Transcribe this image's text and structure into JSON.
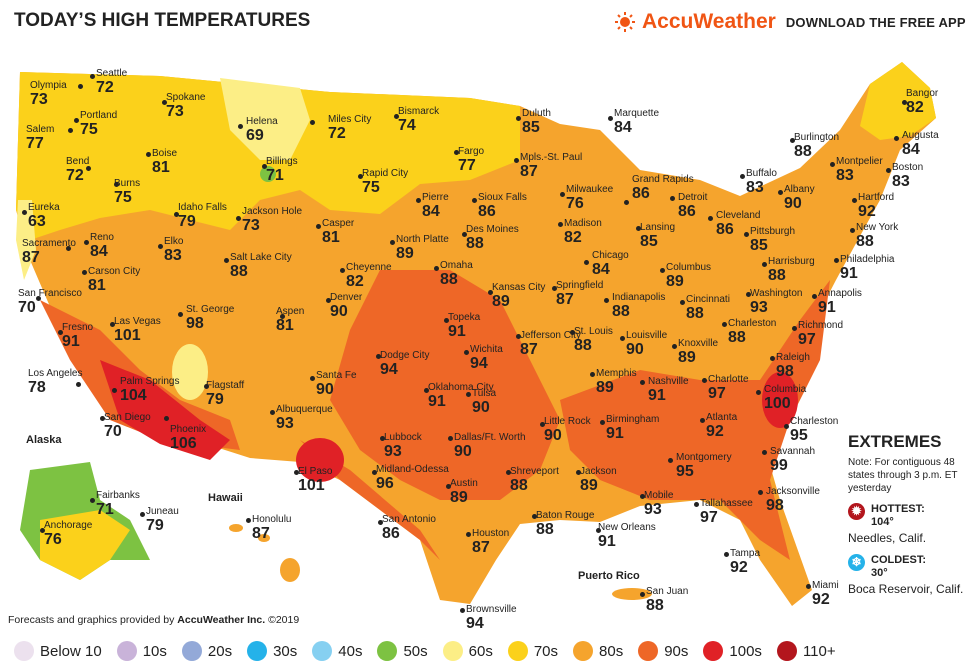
{
  "header": {
    "title": "TODAY’S HIGH TEMPERATURES",
    "brand": "AccuWeather",
    "download": "DOWNLOAD THE FREE APP"
  },
  "colors": {
    "brand": "#f05514",
    "band_60s": "#fcee86",
    "band_70s": "#fbd11b",
    "band_80s": "#f5a42d",
    "band_90s": "#ee6727",
    "band_100s": "#e02126",
    "band_110": "#b3161d",
    "band_50s": "#7dc242"
  },
  "regions": {
    "alaska": "Alaska",
    "hawaii": "Hawaii",
    "puerto_rico": "Puerto Rico"
  },
  "cities": [
    {
      "name": "Olympia",
      "temp": "73"
    },
    {
      "name": "Seattle",
      "temp": "72"
    },
    {
      "name": "Portland",
      "temp": "75"
    },
    {
      "name": "Salem",
      "temp": "77"
    },
    {
      "name": "Bend",
      "temp": "72"
    },
    {
      "name": "Spokane",
      "temp": "73"
    },
    {
      "name": "Boise",
      "temp": "81"
    },
    {
      "name": "Burns",
      "temp": "75"
    },
    {
      "name": "Eureka",
      "temp": "63"
    },
    {
      "name": "Sacramento",
      "temp": "87"
    },
    {
      "name": "Reno",
      "temp": "84"
    },
    {
      "name": "Carson City",
      "temp": "81"
    },
    {
      "name": "San Francisco",
      "temp": "70"
    },
    {
      "name": "Fresno",
      "temp": "91"
    },
    {
      "name": "Las Vegas",
      "temp": "101"
    },
    {
      "name": "Los Angeles",
      "temp": "78"
    },
    {
      "name": "Palm Springs",
      "temp": "104"
    },
    {
      "name": "San Diego",
      "temp": "70"
    },
    {
      "name": "Phoenix",
      "temp": "106"
    },
    {
      "name": "Flagstaff",
      "temp": "79"
    },
    {
      "name": "St. George",
      "temp": "98"
    },
    {
      "name": "Elko",
      "temp": "83"
    },
    {
      "name": "Salt Lake City",
      "temp": "88"
    },
    {
      "name": "Idaho Falls",
      "temp": "79"
    },
    {
      "name": "Jackson Hole",
      "temp": "73"
    },
    {
      "name": "Helena",
      "temp": "69"
    },
    {
      "name": "Billings",
      "temp": "71"
    },
    {
      "name": "Miles City",
      "temp": "72"
    },
    {
      "name": "Casper",
      "temp": "81"
    },
    {
      "name": "Cheyenne",
      "temp": "82"
    },
    {
      "name": "Denver",
      "temp": "90"
    },
    {
      "name": "Aspen",
      "temp": "81"
    },
    {
      "name": "Albuquerque",
      "temp": "93"
    },
    {
      "name": "Santa Fe",
      "temp": "90"
    },
    {
      "name": "El Paso",
      "temp": "101"
    },
    {
      "name": "Bismarck",
      "temp": "74"
    },
    {
      "name": "Rapid City",
      "temp": "75"
    },
    {
      "name": "Pierre",
      "temp": "84"
    },
    {
      "name": "Fargo",
      "temp": "77"
    },
    {
      "name": "Sioux Falls",
      "temp": "86"
    },
    {
      "name": "North Platte",
      "temp": "89"
    },
    {
      "name": "Omaha",
      "temp": "88"
    },
    {
      "name": "Des Moines",
      "temp": "88"
    },
    {
      "name": "Duluth",
      "temp": "85"
    },
    {
      "name": "Mpls.-St. Paul",
      "temp": "87"
    },
    {
      "name": "Marquette",
      "temp": "84"
    },
    {
      "name": "Milwaukee",
      "temp": "76"
    },
    {
      "name": "Madison",
      "temp": "82"
    },
    {
      "name": "Grand Rapids",
      "temp": "86"
    },
    {
      "name": "Lansing",
      "temp": "85"
    },
    {
      "name": "Detroit",
      "temp": "86"
    },
    {
      "name": "Chicago",
      "temp": "84"
    },
    {
      "name": "Springfield",
      "temp": "87"
    },
    {
      "name": "Indianapolis",
      "temp": "88"
    },
    {
      "name": "Columbus",
      "temp": "89"
    },
    {
      "name": "Cincinnati",
      "temp": "88"
    },
    {
      "name": "Kansas City",
      "temp": "89"
    },
    {
      "name": "Topeka",
      "temp": "91"
    },
    {
      "name": "Wichita",
      "temp": "94"
    },
    {
      "name": "Jefferson City",
      "temp": "87"
    },
    {
      "name": "St. Louis",
      "temp": "88"
    },
    {
      "name": "Louisville",
      "temp": "90"
    },
    {
      "name": "Dodge City",
      "temp": "94"
    },
    {
      "name": "Oklahoma City",
      "temp": "91"
    },
    {
      "name": "Tulsa",
      "temp": "90"
    },
    {
      "name": "Lubbock",
      "temp": "93"
    },
    {
      "name": "Midland-Odessa",
      "temp": "96"
    },
    {
      "name": "Dallas/Ft. Worth",
      "temp": "90"
    },
    {
      "name": "Austin",
      "temp": "89"
    },
    {
      "name": "San Antonio",
      "temp": "86"
    },
    {
      "name": "Houston",
      "temp": "87"
    },
    {
      "name": "Brownsville",
      "temp": "94"
    },
    {
      "name": "Shreveport",
      "temp": "88"
    },
    {
      "name": "Little Rock",
      "temp": "90"
    },
    {
      "name": "Memphis",
      "temp": "89"
    },
    {
      "name": "Nashville",
      "temp": "91"
    },
    {
      "name": "Knoxville",
      "temp": "89"
    },
    {
      "name": "Jackson",
      "temp": "89"
    },
    {
      "name": "Birmingham",
      "temp": "91"
    },
    {
      "name": "Baton Rouge",
      "temp": "88"
    },
    {
      "name": "New Orleans",
      "temp": "91"
    },
    {
      "name": "Mobile",
      "temp": "93"
    },
    {
      "name": "Montgomery",
      "temp": "95"
    },
    {
      "name": "Atlanta",
      "temp": "92"
    },
    {
      "name": "Tallahassee",
      "temp": "97"
    },
    {
      "name": "Jacksonville",
      "temp": "98"
    },
    {
      "name": "Tampa",
      "temp": "92"
    },
    {
      "name": "Miami",
      "temp": "92"
    },
    {
      "name": "Savannah",
      "temp": "99"
    },
    {
      "name": "Charleston",
      "temp": "95"
    },
    {
      "name": "Columbia",
      "temp": "100"
    },
    {
      "name": "Charlotte",
      "temp": "97"
    },
    {
      "name": "Raleigh",
      "temp": "98"
    },
    {
      "name": "Richmond",
      "temp": "97"
    },
    {
      "name": "Charleston",
      "temp": "88"
    },
    {
      "name": "Washington",
      "temp": "93"
    },
    {
      "name": "Annapolis",
      "temp": "91"
    },
    {
      "name": "Philadelphia",
      "temp": "91"
    },
    {
      "name": "Harrisburg",
      "temp": "88"
    },
    {
      "name": "Pittsburgh",
      "temp": "85"
    },
    {
      "name": "Cleveland",
      "temp": "86"
    },
    {
      "name": "Buffalo",
      "temp": "83"
    },
    {
      "name": "Albany",
      "temp": "90"
    },
    {
      "name": "New York",
      "temp": "88"
    },
    {
      "name": "Hartford",
      "temp": "92"
    },
    {
      "name": "Boston",
      "temp": "83"
    },
    {
      "name": "Montpelier",
      "temp": "83"
    },
    {
      "name": "Burlington",
      "temp": "88"
    },
    {
      "name": "Augusta",
      "temp": "84"
    },
    {
      "name": "Bangor",
      "temp": "82"
    },
    {
      "name": "Fairbanks",
      "temp": "71"
    },
    {
      "name": "Juneau",
      "temp": "79"
    },
    {
      "name": "Anchorage",
      "temp": "76"
    },
    {
      "name": "Honolulu",
      "temp": "87"
    },
    {
      "name": "San Juan",
      "temp": "88"
    }
  ],
  "extremes": {
    "heading": "EXTREMES",
    "note": "Note: For contiguous 48 states through 3 p.m. ET yesterday",
    "hottest_label": "HOTTEST:",
    "hottest_value": "104°",
    "hottest_place": "Needles, Calif.",
    "coldest_label": "COLDEST:",
    "coldest_value": "30°",
    "coldest_place": "Boca Reservoir, Calif."
  },
  "credit": {
    "prefix": "Forecasts and graphics provided by ",
    "company": "AccuWeather Inc.",
    "suffix": " ©2019"
  },
  "legend": [
    {
      "label": "Below 10",
      "color": "#ece1ee"
    },
    {
      "label": "10s",
      "color": "#c9b3d9"
    },
    {
      "label": "20s",
      "color": "#93a9d8"
    },
    {
      "label": "30s",
      "color": "#25b2e9"
    },
    {
      "label": "40s",
      "color": "#86d0f1"
    },
    {
      "label": "50s",
      "color": "#7dc242"
    },
    {
      "label": "60s",
      "color": "#fcee86"
    },
    {
      "label": "70s",
      "color": "#fbd11b"
    },
    {
      "label": "80s",
      "color": "#f5a42d"
    },
    {
      "label": "90s",
      "color": "#ee6727"
    },
    {
      "label": "100s",
      "color": "#e02126"
    },
    {
      "label": "110+",
      "color": "#b3161d"
    }
  ]
}
